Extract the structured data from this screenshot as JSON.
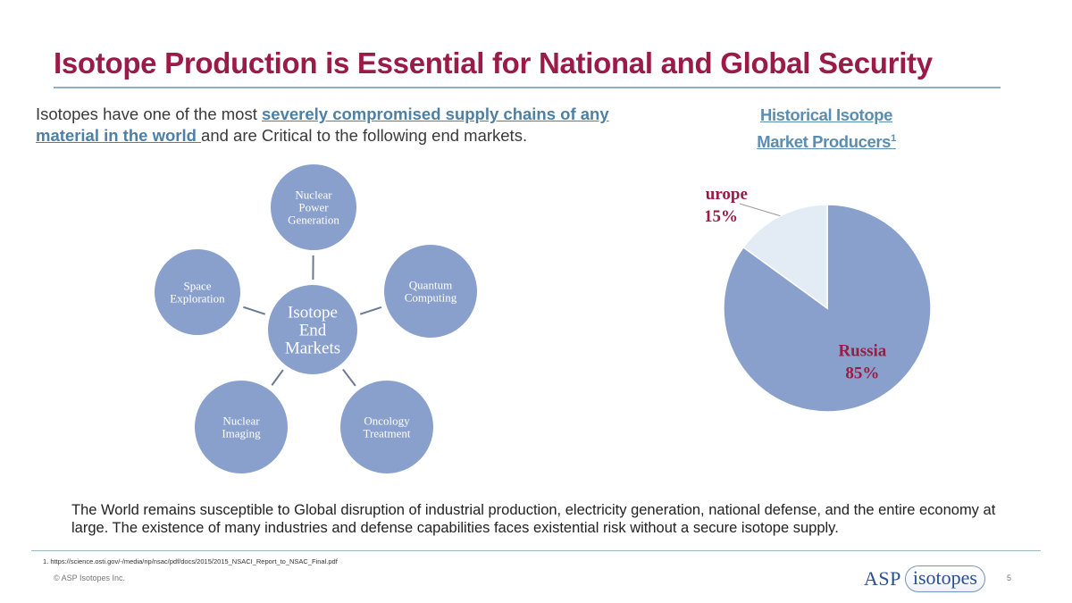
{
  "title": "Isotope Production is Essential for National and Global Security",
  "intro": {
    "pre": "Isotopes have one of the most ",
    "highlight": "severely compromised supply chains of any material in the world ",
    "post": "and are Critical to the following end markets."
  },
  "diagram": {
    "center": [
      "Isotope",
      "End",
      "Markets"
    ],
    "nodes": [
      {
        "label": [
          "Nuclear",
          "Power",
          "Generation"
        ]
      },
      {
        "label": [
          "Quantum",
          "Computing"
        ]
      },
      {
        "label": [
          "Oncology",
          "Treatment"
        ]
      },
      {
        "label": [
          "Nuclear",
          "Imaging"
        ]
      },
      {
        "label": [
          "Space",
          "Exploration"
        ]
      }
    ],
    "color": "#8aa0cc"
  },
  "historical_title": {
    "line1": "Historical Isotope",
    "line2": "Market Producers",
    "sup": "1"
  },
  "chart_data": {
    "type": "pie",
    "slices": [
      {
        "label": "Russia",
        "value": 85,
        "value_text": "85%",
        "color": "#8aa0cc"
      },
      {
        "label": "Europe",
        "value": 15,
        "value_text": "15%",
        "color": "#e3ecf5"
      }
    ]
  },
  "bottom_text": "The World remains susceptible to Global disruption of industrial production, electricity generation, national defense, and the entire economy at large. The existence of many industries and defense capabilities faces existential risk without a secure isotope supply.",
  "footnote": "1. https://science.osti.gov/-/media/np/nsac/pdf/docs/2015/2015_NSACI_Report_to_NSAC_Final.pdf",
  "copyright": "© ASP Isotopes Inc.",
  "logo": {
    "asp": "ASP",
    "isotopes": "isotopes"
  },
  "page_number": "5"
}
